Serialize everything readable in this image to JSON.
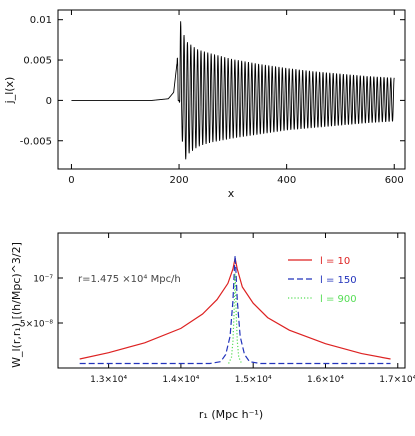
{
  "chart_data": [
    {
      "type": "line",
      "xlabel": "x",
      "ylabel": "j_l(x)",
      "xlim": [
        -25,
        620
      ],
      "ylim": [
        -0.0085,
        0.0112
      ],
      "x_ticks": [
        0,
        200,
        400,
        600
      ],
      "x_tick_labels": [
        "0",
        "200",
        "400",
        "600"
      ],
      "y_ticks": [
        0.01,
        0.005,
        0,
        -0.005
      ],
      "y_tick_labels": [
        "0.01",
        "0.005",
        "0",
        "-0.005"
      ],
      "series": [
        {
          "color": "#000000",
          "style": "solid",
          "x": [
            0,
            150,
            180,
            190,
            196,
            200,
            203,
            206,
            210,
            214,
            218,
            224,
            232,
            240,
            260,
            300,
            350,
            400,
            450,
            500,
            550,
            600
          ],
          "envelope_upper": [
            0,
            0,
            0.0002,
            0.001,
            0.0045,
            0.0085,
            0.0098,
            0.0095,
            0.0078,
            0.0073,
            0.0071,
            0.0068,
            0.0064,
            0.0062,
            0.0058,
            0.0051,
            0.0045,
            0.004,
            0.0036,
            0.0033,
            0.003,
            0.0028
          ],
          "envelope_lower": [
            0,
            0,
            0,
            0,
            0,
            0,
            -0.0015,
            -0.005,
            -0.0078,
            -0.007,
            -0.0066,
            -0.0063,
            -0.0059,
            -0.0056,
            -0.0052,
            -0.0047,
            -0.0042,
            -0.0037,
            -0.0034,
            -0.0031,
            -0.0028,
            -0.0026
          ],
          "oscillation_period": 6.3
        }
      ]
    },
    {
      "type": "line",
      "xlabel": "r₁ (Mpc h⁻¹)",
      "ylabel": "W_l(r,r₁) [(h/Mpc)^3/2]",
      "xlim": [
        12300,
        17100
      ],
      "ylim": [
        0,
        1.5e-07
      ],
      "x_ticks": [
        13000,
        14000,
        15000,
        16000,
        17000
      ],
      "x_tick_labels": [
        "1.3×10⁴",
        "1.4×10⁴",
        "1.5×10⁴",
        "1.6×10⁴",
        "1.7×10⁴"
      ],
      "y_ticks": [
        1e-07,
        5e-08
      ],
      "y_tick_labels": [
        "10⁻⁷",
        "5×10⁻⁸"
      ],
      "annotation": "r=1.475 ×10⁴ Mpc/h",
      "peak_x": 14750,
      "series": [
        {
          "name": "l = 10",
          "color": "#dd2222",
          "style": "solid",
          "x": [
            12600,
            13000,
            13500,
            14000,
            14300,
            14500,
            14650,
            14720,
            14750,
            14780,
            14850,
            15000,
            15200,
            15500,
            16000,
            16500,
            16900
          ],
          "values": [
            1e-08,
            1.7e-08,
            2.8e-08,
            4.4e-08,
            6e-08,
            7.6e-08,
            9.4e-08,
            1.1e-07,
            1.22e-07,
            1.1e-07,
            9e-08,
            7.2e-08,
            5.6e-08,
            4.2e-08,
            2.7e-08,
            1.6e-08,
            1e-08
          ]
        },
        {
          "name": "l = 150",
          "color": "#2233bb",
          "style": "dashed",
          "x": [
            12600,
            14400,
            14550,
            14620,
            14680,
            14720,
            14740,
            14750,
            14760,
            14780,
            14820,
            14880,
            14950,
            15100,
            16900
          ],
          "values": [
            5e-09,
            5e-09,
            7e-09,
            1.5e-08,
            3.5e-08,
            7.5e-08,
            1.1e-07,
            1.25e-07,
            1.1e-07,
            7.5e-08,
            3.5e-08,
            1.5e-08,
            7e-09,
            5e-09,
            5e-09
          ]
        },
        {
          "name": "l = 900",
          "color": "#55dd55",
          "style": "dotted",
          "x": [
            14660,
            14700,
            14720,
            14735,
            14745,
            14750,
            14755,
            14765,
            14780,
            14800,
            14840
          ],
          "values": [
            5e-09,
            1.2e-08,
            3e-08,
            6e-08,
            9e-08,
            1.05e-07,
            9e-08,
            6e-08,
            3e-08,
            1.2e-08,
            5e-09
          ]
        }
      ]
    }
  ]
}
